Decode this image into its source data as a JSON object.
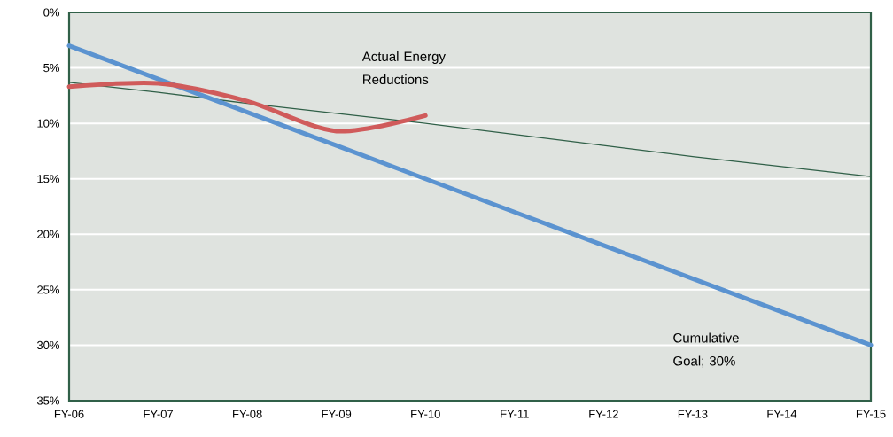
{
  "chart_data": {
    "type": "line",
    "categories": [
      "FY-06",
      "FY-07",
      "FY-08",
      "FY-09",
      "FY-10",
      "FY-11",
      "FY-12",
      "FY-13",
      "FY-14",
      "FY-15"
    ],
    "series": [
      {
        "color": "#306048",
        "values": [
          6.3,
          7.2,
          8.2,
          9.1,
          10.0,
          11.0,
          12.0,
          13.0,
          13.9,
          14.8
        ]
      },
      {
        "color": "#5b93d0",
        "values": [
          3,
          6,
          9,
          12,
          15,
          18,
          21,
          24,
          27,
          30
        ]
      },
      {
        "color": "#d05b5b",
        "values": [
          6.7,
          6.4,
          8.0,
          10.7,
          9.3,
          null,
          null,
          null,
          null,
          null
        ]
      }
    ],
    "ylim": [
      35,
      0
    ],
    "yticks": [
      {
        "value": 0,
        "label": "0%"
      },
      {
        "value": 5,
        "label": "5%"
      },
      {
        "value": 10,
        "label": "10%"
      },
      {
        "value": 15,
        "label": "15%"
      },
      {
        "value": 20,
        "label": "20%"
      },
      {
        "value": 25,
        "label": "25%"
      },
      {
        "value": 30,
        "label": "30%"
      },
      {
        "value": 35,
        "label": "35%"
      }
    ],
    "grid": "y",
    "annotations": [
      "Actual Energy Reductions",
      "Cumulative Goal; 30%"
    ]
  }
}
